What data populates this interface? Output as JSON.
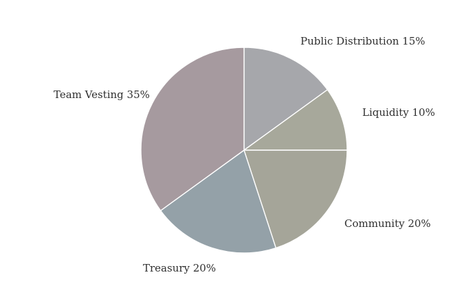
{
  "chart_data": {
    "type": "pie",
    "title": "",
    "slices": [
      {
        "label": "Public Distribution",
        "value": 15,
        "label_text": "Public Distribution 15%",
        "color": "#a6a7ab"
      },
      {
        "label": "Liquidity",
        "value": 10,
        "label_text": "Liquidity 10%",
        "color": "#a7a89b"
      },
      {
        "label": "Community",
        "value": 20,
        "label_text": "Community 20%",
        "color": "#a5a599"
      },
      {
        "label": "Treasury",
        "value": 20,
        "label_text": "Treasury 20%",
        "color": "#94a1a8"
      },
      {
        "label": "Team Vesting",
        "value": 35,
        "label_text": "Team Vesting 35%",
        "color": "#a69a9f"
      }
    ],
    "legend": "none"
  }
}
